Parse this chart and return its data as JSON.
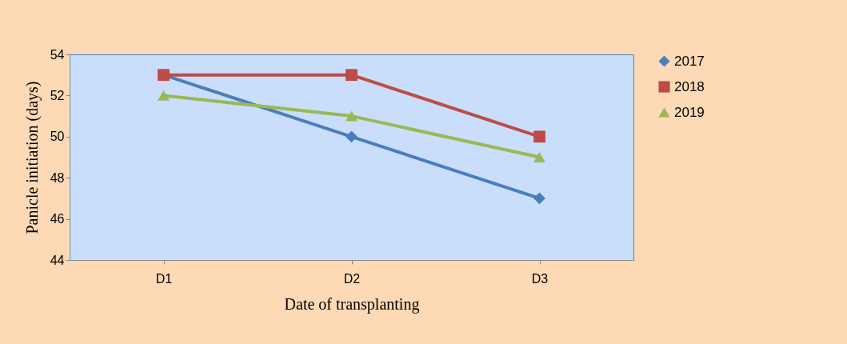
{
  "chart_data": {
    "type": "line",
    "xlabel": "Date of transplanting",
    "ylabel": "Panicle initiation (days)",
    "categories": [
      "D1",
      "D2",
      "D3"
    ],
    "series": [
      {
        "name": "2017",
        "color": "#4a7ebb",
        "marker": "diamond",
        "values": [
          53,
          50,
          47
        ]
      },
      {
        "name": "2018",
        "color": "#be4b48",
        "marker": "square",
        "values": [
          53,
          53,
          50
        ]
      },
      {
        "name": "2019",
        "color": "#98b954",
        "marker": "triangle",
        "values": [
          52,
          51,
          49
        ]
      }
    ],
    "ylim": [
      44,
      54
    ],
    "yticks": [
      44,
      46,
      48,
      50,
      52,
      54
    ],
    "grid": false,
    "legend": "right"
  }
}
